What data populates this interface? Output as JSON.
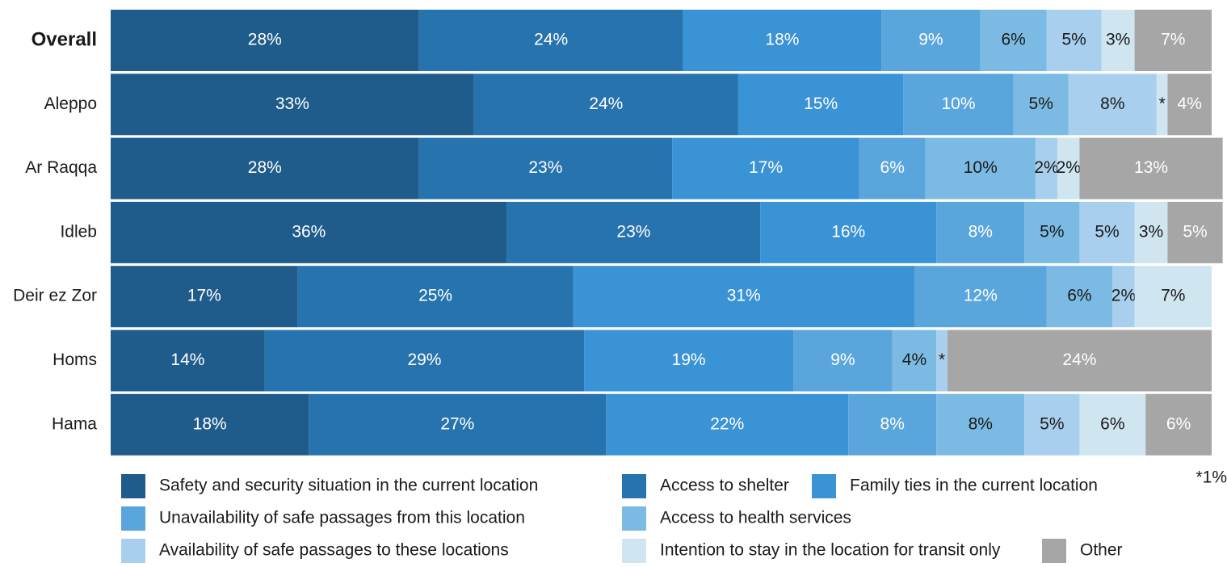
{
  "chart_data": {
    "type": "stacked-bar-horizontal",
    "categories": [
      "Overall",
      "Aleppo",
      "Ar Raqqa",
      "Idleb",
      "Deir ez Zor",
      "Homs",
      "Hama"
    ],
    "xlim": [
      0,
      100
    ],
    "footnote": "*1%",
    "series": [
      {
        "name": "Safety and security situation in the current location",
        "color": "#1f5c8b",
        "values": [
          28,
          33,
          28,
          36,
          17,
          14,
          18
        ],
        "value_labels": [
          "28%",
          "33%",
          "28%",
          "36%",
          "17%",
          "14%",
          "18%"
        ]
      },
      {
        "name": "Access to shelter",
        "color": "#2773ad",
        "values": [
          24,
          24,
          23,
          23,
          25,
          29,
          27
        ],
        "value_labels": [
          "24%",
          "24%",
          "23%",
          "23%",
          "25%",
          "29%",
          "27%"
        ]
      },
      {
        "name": "Family ties in the current location",
        "color": "#3a93d4",
        "values": [
          18,
          15,
          17,
          16,
          31,
          19,
          22
        ],
        "value_labels": [
          "18%",
          "15%",
          "17%",
          "16%",
          "31%",
          "19%",
          "22%"
        ]
      },
      {
        "name": "Unavailability of safe passages from this location",
        "color": "#5aa6dc",
        "values": [
          9,
          10,
          6,
          8,
          12,
          9,
          8
        ],
        "value_labels": [
          "9%",
          "10%",
          "6%",
          "8%",
          "12%",
          "9%",
          "8%"
        ]
      },
      {
        "name": "Access to health services",
        "color": "#7bbbe3",
        "values": [
          6,
          5,
          10,
          5,
          6,
          4,
          8
        ],
        "value_labels": [
          "6%",
          "5%",
          "10%",
          "5%",
          "6%",
          "4%",
          "8%"
        ]
      },
      {
        "name": "Availability of safe passages to these locations",
        "color": "#a9cfee",
        "values": [
          5,
          8,
          2,
          5,
          2,
          1,
          5
        ],
        "value_labels": [
          "5%",
          "8%",
          "2%",
          "5%",
          "2%",
          "*",
          "5%"
        ]
      },
      {
        "name": "Intention to stay in the location for transit only",
        "color": "#cfe5f0",
        "values": [
          3,
          1,
          2,
          3,
          7,
          null,
          6
        ],
        "value_labels": [
          "3%",
          "*",
          "2%",
          "3%",
          "7%",
          null,
          "6%"
        ]
      },
      {
        "name": "Other",
        "color": "#a6a6a6",
        "values": [
          7,
          4,
          13,
          5,
          null,
          24,
          6
        ],
        "value_labels": [
          "7%",
          "4%",
          "13%",
          "5%",
          null,
          "24%",
          "6%"
        ]
      }
    ]
  }
}
